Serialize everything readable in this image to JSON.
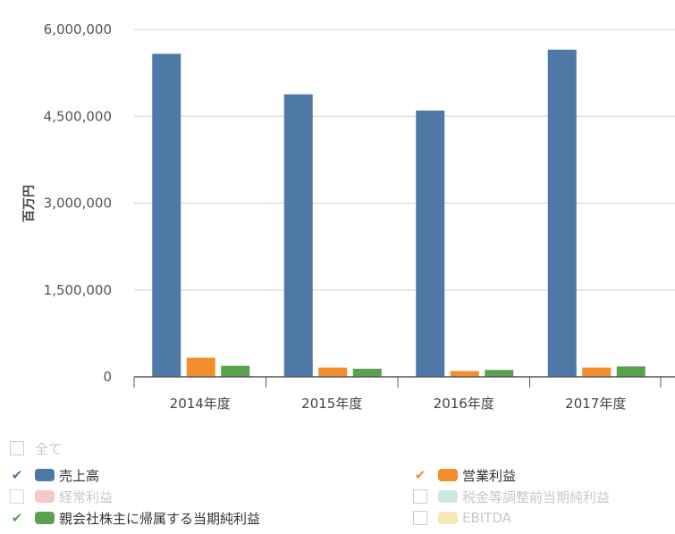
{
  "chart_data": {
    "type": "bar",
    "ylabel": "百万円",
    "ylim": [
      0,
      6000000
    ],
    "yticks": [
      0,
      1500000,
      3000000,
      4500000,
      6000000
    ],
    "ytick_labels": [
      "0",
      "1,500,000",
      "3,000,000",
      "4,500,000",
      "6,000,000"
    ],
    "categories": [
      "2014年度",
      "2015年度",
      "2016年度",
      "2017年度"
    ],
    "grid": true,
    "series": [
      {
        "name": "売上高",
        "color": "#4e79a7",
        "values": [
          5580000,
          4880000,
          4600000,
          5650000
        ]
      },
      {
        "name": "営業利益",
        "color": "#f28e2b",
        "values": [
          330000,
          160000,
          100000,
          160000
        ]
      },
      {
        "name": "親会社株主に帰属する当期純利益",
        "color": "#59a14f",
        "values": [
          190000,
          140000,
          120000,
          180000
        ]
      }
    ]
  },
  "legend": {
    "all_label": "全て",
    "items": [
      {
        "name": "売上高",
        "color": "#4e79a7",
        "checked": true,
        "check_color": "#4e79a7"
      },
      {
        "name": "営業利益",
        "color": "#f28e2b",
        "checked": true,
        "check_color": "#f28e2b"
      },
      {
        "name": "経常利益",
        "color": "#f5c7c7",
        "checked": false,
        "check_color": "#c6dcec"
      },
      {
        "name": "税金等調整前当期純利益",
        "color": "#cfe6e6",
        "checked": false,
        "check_color": "#cccccc"
      },
      {
        "name": "親会社株主に帰属する当期純利益",
        "color": "#59a14f",
        "checked": true,
        "check_color": "#59a14f"
      },
      {
        "name": "EBITDA",
        "color": "#f7e8b8",
        "checked": false,
        "check_color": "#cccccc"
      }
    ]
  }
}
